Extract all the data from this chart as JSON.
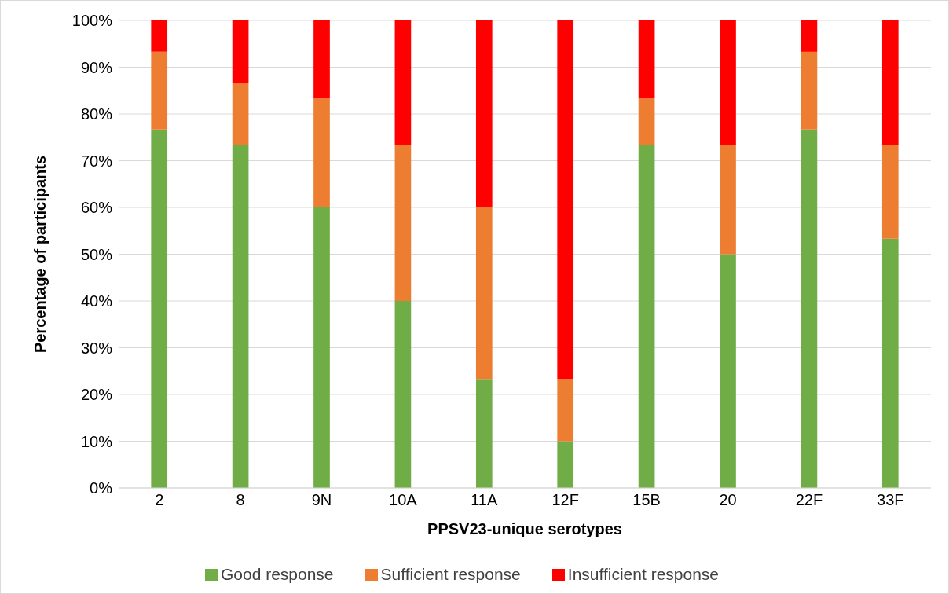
{
  "chart_data": {
    "type": "bar",
    "stacked": true,
    "xlabel": "PPSV23-unique serotypes",
    "ylabel": "Percentage of participants",
    "categories": [
      "2",
      "8",
      "9N",
      "10A",
      "11A",
      "12F",
      "15B",
      "20",
      "22F",
      "33F"
    ],
    "series": [
      {
        "name": "Good response",
        "color": "#70ad47",
        "values": [
          76.7,
          73.3,
          60,
          40,
          23.3,
          10,
          73.3,
          50,
          76.7,
          53.3
        ]
      },
      {
        "name": "Sufficient response",
        "color": "#ed7d31",
        "values": [
          16.6,
          13.4,
          23.3,
          33.3,
          36.7,
          13.3,
          10,
          23.3,
          16.6,
          20
        ]
      },
      {
        "name": "Insufficient response",
        "color": "#ff0000",
        "values": [
          6.7,
          13.3,
          16.7,
          26.7,
          40,
          76.7,
          16.7,
          26.7,
          6.7,
          26.7
        ]
      }
    ],
    "ylim": [
      0,
      100
    ],
    "yticks": [
      {
        "value": 0,
        "label": "0%"
      },
      {
        "value": 10,
        "label": "10%"
      },
      {
        "value": 20,
        "label": "20%"
      },
      {
        "value": 30,
        "label": "30%"
      },
      {
        "value": 40,
        "label": "40%"
      },
      {
        "value": 50,
        "label": "50%"
      },
      {
        "value": 60,
        "label": "60%"
      },
      {
        "value": 70,
        "label": "70%"
      },
      {
        "value": 80,
        "label": "80%"
      },
      {
        "value": 90,
        "label": "90%"
      },
      {
        "value": 100,
        "label": "100%"
      }
    ],
    "grid": "y",
    "legend": "bottom"
  }
}
